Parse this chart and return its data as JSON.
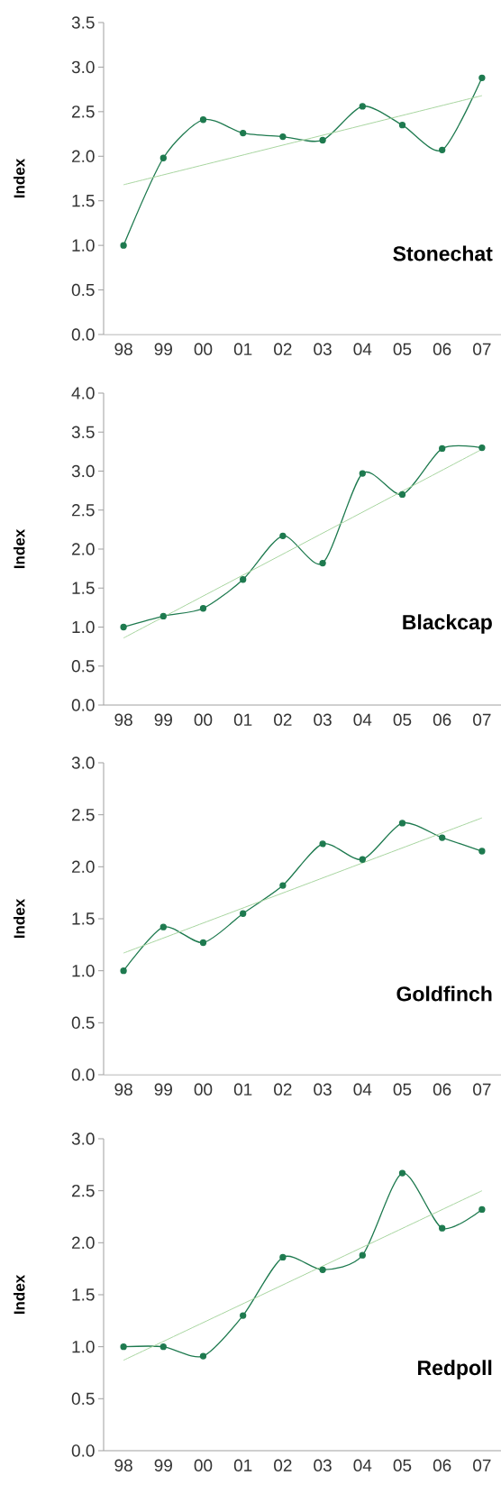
{
  "chart_data": [
    {
      "type": "line",
      "ylabel": "Index",
      "categories": [
        "98",
        "99",
        "00",
        "01",
        "02",
        "03",
        "04",
        "05",
        "06",
        "07"
      ],
      "ylim": [
        0,
        3.5
      ],
      "yticks": [
        {
          "value": 0,
          "label": "0.0"
        },
        0.5,
        {
          "value": 1,
          "label": "1.0"
        },
        1.5,
        {
          "value": 2,
          "label": "2.0"
        },
        2.5,
        {
          "value": 3,
          "label": "3.0"
        },
        3.5
      ],
      "annotations": [
        "Stonechat"
      ],
      "marker": "circle",
      "series": [
        {
          "color": "#1e7a4f",
          "values": [
            1.0,
            1.98,
            2.41,
            2.26,
            2.22,
            2.18,
            2.56,
            2.35,
            2.07,
            2.88
          ]
        },
        {
          "color": "#a8d5a0",
          "marker": "none",
          "x": [
            "98",
            "07"
          ],
          "values": [
            1.68,
            2.68
          ]
        }
      ]
    },
    {
      "type": "line",
      "ylabel": "Index",
      "categories": [
        "98",
        "99",
        "00",
        "01",
        "02",
        "03",
        "04",
        "05",
        "06",
        "07"
      ],
      "ylim": [
        0,
        4
      ],
      "yticks": [
        {
          "value": 0,
          "label": "0.0"
        },
        0.5,
        {
          "value": 1,
          "label": "1.0"
        },
        1.5,
        {
          "value": 2,
          "label": "2.0"
        },
        2.5,
        {
          "value": 3,
          "label": "3.0"
        },
        3.5,
        {
          "value": 4,
          "label": "4.0"
        }
      ],
      "annotations": [
        "Blackcap"
      ],
      "marker": "circle",
      "series": [
        {
          "color": "#1e7a4f",
          "values": [
            1.0,
            1.14,
            1.24,
            1.61,
            2.17,
            1.82,
            2.97,
            2.7,
            3.29,
            3.3
          ]
        },
        {
          "color": "#a8d5a0",
          "marker": "none",
          "x": [
            "98",
            "07"
          ],
          "values": [
            0.86,
            3.28
          ]
        }
      ]
    },
    {
      "type": "line",
      "ylabel": "Index",
      "categories": [
        "98",
        "99",
        "00",
        "01",
        "02",
        "03",
        "04",
        "05",
        "06",
        "07"
      ],
      "ylim": [
        0,
        3
      ],
      "yticks": [
        {
          "value": 0,
          "label": "0.0"
        },
        0.5,
        {
          "value": 1,
          "label": "1.0"
        },
        1.5,
        {
          "value": 2,
          "label": "2.0"
        },
        2.5,
        {
          "value": 3,
          "label": "3.0"
        }
      ],
      "annotations": [
        "Goldfinch"
      ],
      "marker": "circle",
      "series": [
        {
          "color": "#1e7a4f",
          "values": [
            1.0,
            1.42,
            1.27,
            1.55,
            1.82,
            2.22,
            2.07,
            2.42,
            2.28,
            2.15
          ]
        },
        {
          "color": "#a8d5a0",
          "marker": "none",
          "x": [
            "98",
            "07"
          ],
          "values": [
            1.17,
            2.47
          ]
        }
      ]
    },
    {
      "type": "line",
      "ylabel": "Index",
      "categories": [
        "98",
        "99",
        "00",
        "01",
        "02",
        "03",
        "04",
        "05",
        "06",
        "07"
      ],
      "ylim": [
        0,
        3
      ],
      "yticks": [
        {
          "value": 0,
          "label": "0.0"
        },
        0.5,
        {
          "value": 1,
          "label": "1.0"
        },
        1.5,
        {
          "value": 2,
          "label": "2.0"
        },
        2.5,
        {
          "value": 3,
          "label": "3.0"
        }
      ],
      "annotations": [
        "Redpoll"
      ],
      "marker": "circle",
      "series": [
        {
          "color": "#1e7a4f",
          "values": [
            1.0,
            1.0,
            0.91,
            1.3,
            1.86,
            1.74,
            1.88,
            2.67,
            2.14,
            2.32
          ]
        },
        {
          "color": "#a8d5a0",
          "marker": "none",
          "x": [
            "98",
            "07"
          ],
          "values": [
            0.87,
            2.5
          ]
        }
      ]
    }
  ]
}
